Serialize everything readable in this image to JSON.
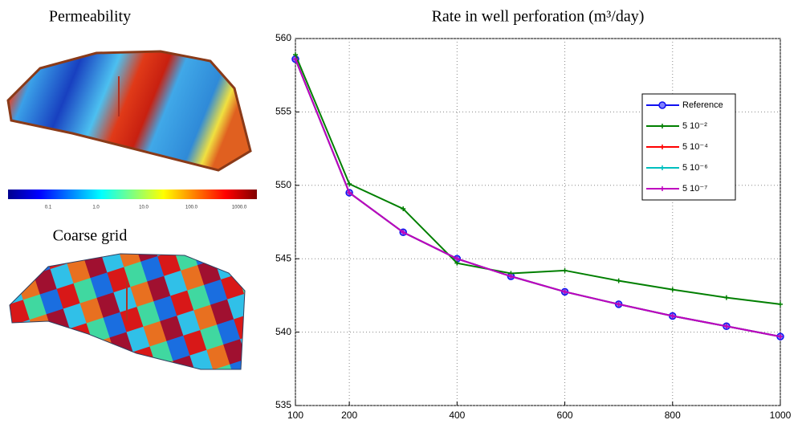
{
  "panels": {
    "permeability_title": "Permeability",
    "colorbar_ticks": [
      {
        "value": 0.1,
        "label": "0.1"
      },
      {
        "value": 1,
        "label": "1.0"
      },
      {
        "value": 10,
        "label": "10.0"
      },
      {
        "value": 100,
        "label": "100.0"
      },
      {
        "value": 1000,
        "label": "1000.0"
      }
    ],
    "coarse_title": "Coarse grid"
  },
  "chart_data": {
    "type": "line",
    "title": "Rate in well perforation (m³/day)",
    "x": [
      100,
      200,
      300,
      400,
      500,
      600,
      700,
      800,
      900,
      1000
    ],
    "series": [
      {
        "name": "Reference",
        "color": "#1010f0",
        "marker": "circle",
        "values": [
          558.6,
          549.5,
          546.8,
          545.0,
          543.8,
          542.75,
          541.9,
          541.1,
          540.4,
          539.7
        ]
      },
      {
        "name": "5 10⁻²",
        "color": "#007f00",
        "marker": "plus",
        "values": [
          558.9,
          550.1,
          548.4,
          544.7,
          544.0,
          544.2,
          543.5,
          542.9,
          542.35,
          541.9
        ]
      },
      {
        "name": "5 10⁻⁴",
        "color": "#ff0000",
        "marker": "plus",
        "values": [
          558.6,
          549.5,
          546.8,
          545.0,
          543.8,
          542.75,
          541.9,
          541.1,
          540.4,
          539.7
        ]
      },
      {
        "name": "5 10⁻⁶",
        "color": "#00bfbf",
        "marker": "plus",
        "values": [
          558.6,
          549.5,
          546.8,
          545.0,
          543.8,
          542.75,
          541.9,
          541.1,
          540.4,
          539.7
        ]
      },
      {
        "name": "5 10⁻⁷",
        "color": "#bf00bf",
        "marker": "plus",
        "values": [
          558.6,
          549.5,
          546.8,
          545.0,
          543.8,
          542.75,
          541.9,
          541.1,
          540.4,
          539.7
        ]
      }
    ],
    "xlim": [
      100,
      1000
    ],
    "xticks": [
      100,
      200,
      400,
      600,
      800,
      1000
    ],
    "ylim": [
      535,
      560
    ],
    "yticks": [
      535,
      540,
      545,
      550,
      555,
      560
    ],
    "grid": true,
    "legend": "upper right"
  }
}
